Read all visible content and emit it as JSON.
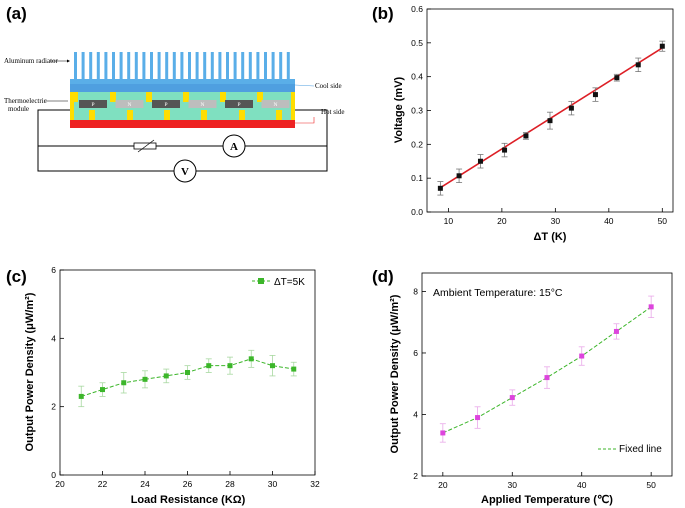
{
  "panel_labels": [
    "(a)",
    "(b)",
    "(c)",
    "(d)"
  ],
  "schematic": {
    "aluminum_radiator": "Aluminum radiator",
    "cool_side": "Cool side",
    "thermoelectric_module_line1": "Thermoelectric",
    "thermoelectric_module_line2": "module",
    "hot_side": "Hot side",
    "p_label": "P",
    "n_label": "N",
    "ammeter": "A",
    "voltmeter": "V",
    "colors": {
      "fins": "#5aaee8",
      "blue": "#4f9fe0",
      "green": "#7fe0c0",
      "yellow": "#ffdd00",
      "p_leg": "#555555",
      "n_leg": "#bdbdbd",
      "hot": "#ee2222"
    }
  },
  "chart_data": [
    {
      "id": "b",
      "type": "scatter",
      "title": "",
      "xlabel": "ΔT (K)",
      "ylabel": "Voltage (mV)",
      "xlim": [
        6,
        52
      ],
      "ylim": [
        0.0,
        0.6
      ],
      "xticks": [
        10,
        20,
        30,
        40,
        50
      ],
      "yticks": [
        0.0,
        0.1,
        0.2,
        0.3,
        0.4,
        0.5,
        0.6
      ],
      "tick_labels_x": [
        "10",
        "20",
        "30",
        "40",
        "50"
      ],
      "tick_labels_y": [
        "0.0",
        "0.1",
        "0.2",
        "0.3",
        "0.4",
        "0.5",
        "0.6"
      ],
      "x": [
        8.5,
        12,
        16,
        20.5,
        24.5,
        29,
        33,
        37.5,
        41.5,
        45.5,
        50
      ],
      "y": [
        0.07,
        0.107,
        0.15,
        0.183,
        0.225,
        0.27,
        0.307,
        0.347,
        0.397,
        0.435,
        0.49
      ],
      "err": [
        0.02,
        0.02,
        0.02,
        0.02,
        0.01,
        0.025,
        0.02,
        0.02,
        0.01,
        0.02,
        0.015
      ],
      "fit_line": {
        "x": [
          8.5,
          50
        ],
        "y": [
          0.072,
          0.485
        ]
      },
      "marker_color": "#111111",
      "line_color": "#dd1f26"
    },
    {
      "id": "c",
      "type": "line",
      "title": "",
      "xlabel": "Load Resistance (KΩ)",
      "ylabel": "Output Power Density (μW/m²)",
      "xlim": [
        20,
        32
      ],
      "ylim": [
        0,
        6
      ],
      "xticks": [
        20,
        22,
        24,
        26,
        28,
        30,
        32
      ],
      "yticks": [
        0,
        2,
        4,
        6
      ],
      "tick_labels_x": [
        "20",
        "22",
        "24",
        "26",
        "28",
        "30",
        "32"
      ],
      "tick_labels_y": [
        "0",
        "2",
        "4",
        "6"
      ],
      "series": [
        {
          "name": "ΔT=5K",
          "x": [
            21,
            22,
            23,
            24,
            25,
            26,
            27,
            28,
            29,
            30,
            31
          ],
          "y": [
            2.3,
            2.5,
            2.7,
            2.8,
            2.9,
            3.0,
            3.2,
            3.2,
            3.4,
            3.2,
            3.1
          ],
          "err": [
            0.3,
            0.2,
            0.3,
            0.25,
            0.2,
            0.2,
            0.2,
            0.25,
            0.25,
            0.3,
            0.2
          ],
          "color": "#3cb62a"
        }
      ],
      "legend": "top-right"
    },
    {
      "id": "d",
      "type": "line",
      "title": "",
      "xlabel": "Applied Temperature (℃)",
      "ylabel": "Output Power Density (μW/m²)",
      "xlim": [
        17,
        53
      ],
      "ylim": [
        2,
        8.6
      ],
      "xticks": [
        20,
        30,
        40,
        50
      ],
      "yticks": [
        2,
        4,
        6,
        8
      ],
      "tick_labels_x": [
        "20",
        "30",
        "40",
        "50"
      ],
      "tick_labels_y": [
        "2",
        "4",
        "6",
        "8"
      ],
      "annotation": "Ambient Temperature: 15°C",
      "series": [
        {
          "name": "Fixed line",
          "x": [
            20,
            25,
            30,
            35,
            40,
            45,
            50
          ],
          "y": [
            3.4,
            3.9,
            4.55,
            5.2,
            5.9,
            6.7,
            7.5
          ],
          "err": [
            0.3,
            0.35,
            0.25,
            0.35,
            0.3,
            0.25,
            0.35
          ],
          "color": "#dd44dd",
          "line_color": "#3cb62a"
        }
      ],
      "legend": "bottom-right"
    }
  ]
}
